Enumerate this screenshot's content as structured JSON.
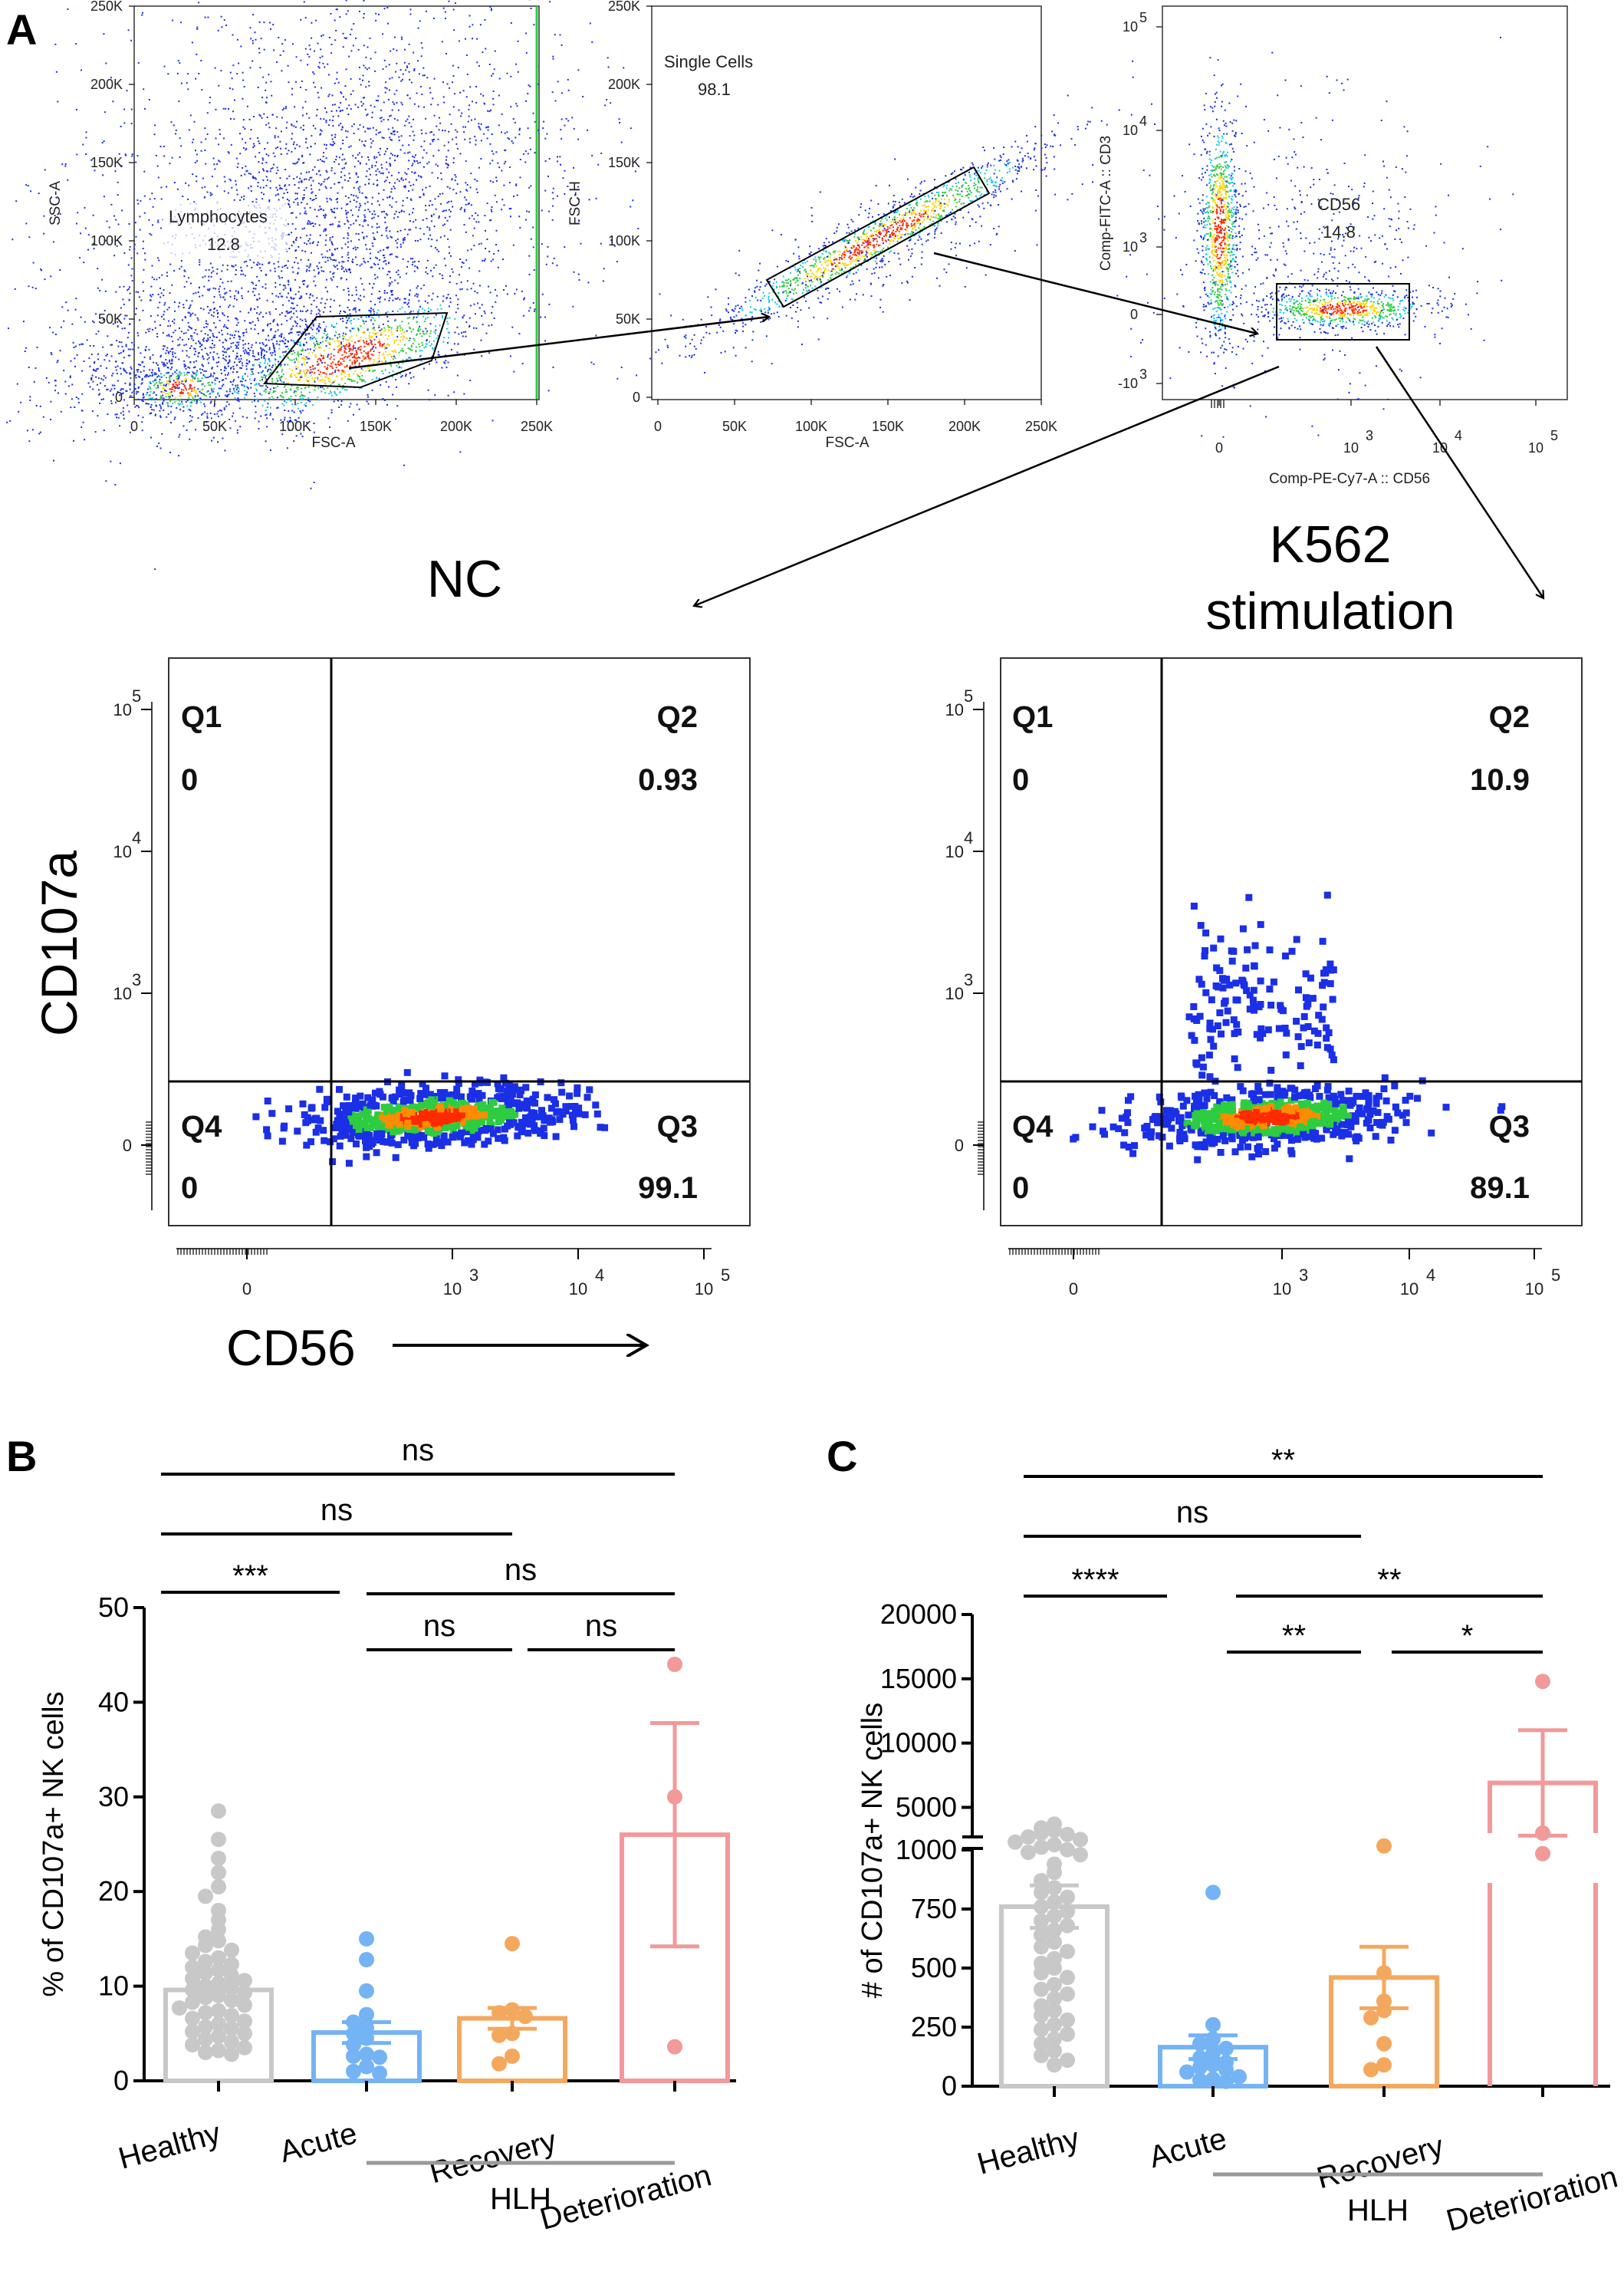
{
  "panel_letters": {
    "a": "A",
    "b": "B",
    "c": "C"
  },
  "colors": {
    "dot_blue": "#1a2fe6",
    "dot_green": "#2ecc40",
    "dot_red": "#ff2a00",
    "healthy": "#c8c8c8",
    "acute": "#74b3f4",
    "recovery": "#f4a85e",
    "deterioration": "#f2999a"
  },
  "chart_data": [
    {
      "type": "scatter",
      "id": "gate-lymphocytes",
      "xlabel": "FSC-A",
      "ylabel": "SSC-A",
      "x_ticks": [
        "0",
        "50K",
        "100K",
        "150K",
        "200K",
        "250K"
      ],
      "y_ticks": [
        "0",
        "50K",
        "100K",
        "150K",
        "200K",
        "250K"
      ],
      "gate": {
        "name": "Lymphocytes",
        "value": "12.8"
      }
    },
    {
      "type": "scatter",
      "id": "gate-single-cells",
      "xlabel": "FSC-A",
      "ylabel": "FSC-H",
      "x_ticks": [
        "0",
        "50K",
        "100K",
        "150K",
        "200K",
        "250K"
      ],
      "y_ticks": [
        "0",
        "50K",
        "100K",
        "150K",
        "200K",
        "250K"
      ],
      "gate": {
        "name": "Single Cells",
        "value": "98.1"
      }
    },
    {
      "type": "scatter",
      "id": "gate-cd56",
      "xlabel": "Comp-PE-Cy7-A :: CD56",
      "ylabel": "Comp-FITC-A :: CD3",
      "x_ticks": [
        "0",
        "10",
        "10",
        "10"
      ],
      "x_exponents": [
        "",
        "3",
        "4",
        "5"
      ],
      "y_ticks": [
        "-10",
        "0",
        "10",
        "10",
        "10"
      ],
      "y_exponents": [
        "3",
        "",
        "3",
        "4",
        "5"
      ],
      "gate": {
        "name": "CD56",
        "value": "14.8"
      }
    },
    {
      "type": "scatter",
      "id": "quadrant-nc",
      "title": "NC",
      "quadrants": {
        "Q1": "0",
        "Q2": "0.93",
        "Q3": "99.1",
        "Q4": "0"
      },
      "x_ticks": [
        "0",
        "10",
        "10",
        "10"
      ],
      "x_exponents": [
        "",
        "3",
        "4",
        "5"
      ],
      "y_ticks": [
        "0",
        "10",
        "10",
        "10"
      ],
      "y_exponents": [
        "",
        "3",
        "4",
        "5"
      ]
    },
    {
      "type": "scatter",
      "id": "quadrant-k562",
      "title_lines": [
        "K562",
        "stimulation"
      ],
      "quadrants": {
        "Q1": "0",
        "Q2": "10.9",
        "Q3": "89.1",
        "Q4": "0"
      },
      "x_ticks": [
        "0",
        "10",
        "10",
        "10"
      ],
      "x_exponents": [
        "",
        "3",
        "4",
        "5"
      ],
      "y_ticks": [
        "0",
        "10",
        "10",
        "10"
      ],
      "y_exponents": [
        "",
        "3",
        "4",
        "5"
      ]
    },
    {
      "type": "bar",
      "id": "panel-b",
      "ylabel": "% of CD107a+ NK cells",
      "ylim": [
        0,
        50
      ],
      "yticks": [
        0,
        10,
        20,
        30,
        40,
        50
      ],
      "categories": [
        "Healthy",
        "Acute",
        "Recovery",
        "Deterioration"
      ],
      "group_label": "HLH",
      "means": [
        9.6,
        5.1,
        6.6,
        26.0
      ],
      "sem": [
        0.8,
        1.1,
        1.1,
        11.8
      ],
      "points": [
        [
          28.5,
          25.5,
          23.5,
          22.0,
          20.5,
          19.5,
          18.0,
          17.0,
          16.0,
          15.2,
          14.8,
          14.3,
          13.8,
          13.5,
          13.0,
          12.6,
          12.3,
          12.0,
          11.7,
          11.4,
          11.1,
          10.8,
          10.6,
          10.3,
          10.0,
          9.8,
          9.6,
          9.3,
          9.0,
          8.8,
          8.5,
          8.3,
          8.0,
          7.7,
          7.4,
          7.2,
          6.9,
          6.6,
          6.3,
          6.0,
          5.7,
          5.5,
          5.2,
          5.0,
          4.7,
          4.4,
          4.1,
          3.8,
          3.5,
          3.2,
          3.0,
          2.8
        ],
        [
          15.0,
          12.8,
          9.5,
          7.0,
          6.2,
          5.6,
          5.0,
          4.5,
          3.8,
          2.8,
          2.6,
          2.5,
          1.5,
          1.0,
          0.8
        ],
        [
          14.5,
          7.5,
          7.2,
          6.8,
          5.0,
          4.8,
          2.6,
          1.8
        ],
        [
          44.0,
          30.0,
          3.6
        ]
      ],
      "significance": [
        {
          "from": 0,
          "to": 3,
          "label": "ns"
        },
        {
          "from": 0,
          "to": 2,
          "label": "ns"
        },
        {
          "from": 0,
          "to": 1,
          "label": "***"
        },
        {
          "from": 1,
          "to": 3,
          "label": "ns"
        },
        {
          "from": 1,
          "to": 2,
          "label": "ns"
        },
        {
          "from": 2,
          "to": 3,
          "label": "ns"
        }
      ]
    },
    {
      "type": "bar",
      "id": "panel-c",
      "ylabel": "# of CD107a+ NK cells",
      "ylim_lower": [
        0,
        1000
      ],
      "yticks_lower": [
        0,
        250,
        500,
        750,
        1000
      ],
      "ylim_upper": [
        3000,
        20000
      ],
      "yticks_upper": [
        5000,
        10000,
        15000,
        20000
      ],
      "categories": [
        "Healthy",
        "Acute",
        "Recovery",
        "Deterioration"
      ],
      "group_label": "HLH",
      "means": [
        760,
        165,
        460,
        6900
      ],
      "sem": [
        90,
        50,
        130,
        4100
      ],
      "points": [
        [
          3700,
          3400,
          3200,
          3000,
          2900,
          2700,
          2500,
          2300,
          2100,
          1900,
          1700,
          1500,
          980,
          940,
          905,
          870,
          840,
          820,
          800,
          780,
          760,
          740,
          720,
          700,
          680,
          660,
          640,
          610,
          590,
          570,
          540,
          520,
          500,
          480,
          460,
          430,
          410,
          390,
          370,
          340,
          320,
          300,
          280,
          260,
          240,
          220,
          200,
          180,
          150,
          130,
          110,
          90
        ],
        [
          820,
          260,
          200,
          180,
          160,
          140,
          120,
          100,
          90,
          80,
          70,
          60,
          40,
          30,
          25,
          20
        ],
        [
          2000,
          480,
          360,
          320,
          290,
          180,
          90,
          70
        ],
        [
          14800,
          3000,
          1400
        ]
      ],
      "significance": [
        {
          "from": 0,
          "to": 3,
          "label": "**"
        },
        {
          "from": 0,
          "to": 2,
          "label": "ns"
        },
        {
          "from": 0,
          "to": 1,
          "label": "****"
        },
        {
          "from": 1,
          "to": 3,
          "label": "**"
        },
        {
          "from": 1,
          "to": 2,
          "label": "**"
        },
        {
          "from": 2,
          "to": 3,
          "label": "*"
        }
      ]
    }
  ],
  "axis_labels": {
    "cd107a": "CD107a",
    "cd56": "CD56"
  }
}
